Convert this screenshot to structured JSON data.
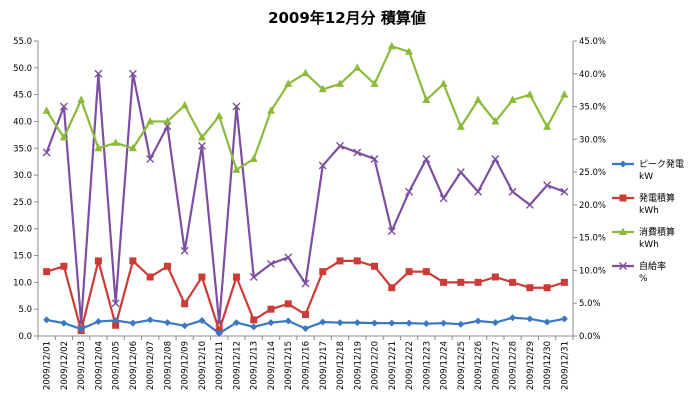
{
  "chart_data": {
    "type": "line",
    "title": "2009年12月分 積算値",
    "categories": [
      "2009/12/01",
      "2009/12/02",
      "2009/12/03",
      "2009/12/04",
      "2009/12/05",
      "2009/12/06",
      "2009/12/07",
      "2009/12/08",
      "2009/12/09",
      "2009/12/10",
      "2009/12/11",
      "2009/12/12",
      "2009/12/13",
      "2009/12/14",
      "2009/12/15",
      "2009/12/16",
      "2009/12/17",
      "2009/12/18",
      "2009/12/19",
      "2009/12/20",
      "2009/12/21",
      "2009/12/22",
      "2009/12/23",
      "2009/12/24",
      "2009/12/25",
      "2009/12/26",
      "2009/12/27",
      "2009/12/28",
      "2009/12/29",
      "2009/12/30",
      "2009/12/31"
    ],
    "y_left": {
      "ylim": [
        0,
        55
      ],
      "ticks": [
        "0.0",
        "5.0",
        "10.0",
        "15.0",
        "20.0",
        "25.0",
        "30.0",
        "35.0",
        "40.0",
        "45.0",
        "50.0",
        "55.0"
      ]
    },
    "y_right": {
      "ylim": [
        0,
        45
      ],
      "ticks": [
        "0.0%",
        "5.0%",
        "10.0%",
        "15.0%",
        "20.0%",
        "25.0%",
        "30.0%",
        "35.0%",
        "40.0%",
        "45.0%"
      ]
    },
    "grid": false,
    "legend_position": "right",
    "series": [
      {
        "name": "ピーク発電",
        "unit": "kW",
        "axis": "left",
        "color": "#3a78c4",
        "marker": "diamond",
        "values": [
          3.0,
          2.4,
          1.3,
          2.7,
          2.9,
          2.4,
          3.0,
          2.5,
          1.9,
          2.9,
          0.5,
          2.5,
          1.7,
          2.5,
          2.8,
          1.4,
          2.6,
          2.5,
          2.5,
          2.4,
          2.4,
          2.4,
          2.3,
          2.4,
          2.2,
          2.8,
          2.5,
          3.4,
          3.2,
          2.6,
          3.2
        ]
      },
      {
        "name": "発電積算",
        "unit": "kWh",
        "axis": "left",
        "color": "#cc3b36",
        "marker": "square",
        "values": [
          12.0,
          13.0,
          1.0,
          14.0,
          2.0,
          14.0,
          11.0,
          13.0,
          6.0,
          11.0,
          1.0,
          11.0,
          3.0,
          5.0,
          6.0,
          4.0,
          12.0,
          14.0,
          14.0,
          13.0,
          9.0,
          12.0,
          12.0,
          10.0,
          10.0,
          10.0,
          11.0,
          10.0,
          9.0,
          9.0,
          10.0
        ]
      },
      {
        "name": "消費積算",
        "unit": "kWh",
        "axis": "left",
        "color": "#8cbb3c",
        "marker": "triangle",
        "values": [
          42.0,
          37.0,
          44.0,
          35.0,
          36.0,
          35.0,
          40.0,
          40.0,
          43.0,
          37.0,
          41.0,
          31.0,
          33.0,
          42.0,
          47.0,
          49.0,
          46.0,
          47.0,
          50.0,
          47.0,
          54.0,
          53.0,
          44.0,
          47.0,
          39.0,
          44.0,
          40.0,
          44.0,
          45.0,
          39.0,
          45.0
        ]
      },
      {
        "name": "自給率",
        "unit": "%",
        "axis": "right",
        "color": "#7d4fa0",
        "marker": "x",
        "values": [
          28.0,
          35.0,
          2.0,
          40.0,
          5.0,
          40.0,
          27.0,
          32.0,
          13.0,
          29.0,
          2.0,
          35.0,
          9.0,
          11.0,
          12.0,
          8.0,
          26.0,
          29.0,
          28.0,
          27.0,
          16.0,
          22.0,
          27.0,
          21.0,
          25.0,
          22.0,
          27.0,
          22.0,
          20.0,
          23.0,
          22.0
        ]
      }
    ]
  }
}
